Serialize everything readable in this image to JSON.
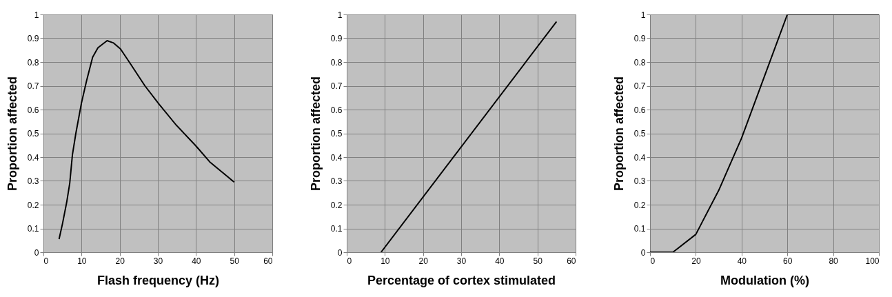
{
  "chart_data": [
    {
      "type": "line",
      "xlabel": "Flash frequency (Hz)",
      "ylabel": "Proportion affected",
      "xlim": [
        0,
        60
      ],
      "xticks": [
        0,
        10,
        20,
        30,
        40,
        50,
        60
      ],
      "ylim": [
        0,
        1
      ],
      "yticks": [
        0,
        0.1,
        0.2,
        0.3,
        0.4,
        0.5,
        0.6,
        0.7,
        0.8,
        0.9,
        1
      ],
      "grid": true,
      "series": [
        {
          "color": "#000000",
          "x": [
            4.1,
            5,
            6.1,
            6.9,
            7.6,
            8.5,
            10,
            11.3,
            12.9,
            14.3,
            16.7,
            18.4,
            20.2,
            22.5,
            26.6,
            30.2,
            34.8,
            40.1,
            43.6,
            50
          ],
          "values": [
            0.055,
            0.12,
            0.21,
            0.29,
            0.41,
            0.5,
            0.63,
            0.72,
            0.82,
            0.86,
            0.89,
            0.88,
            0.855,
            0.8,
            0.7,
            0.625,
            0.535,
            0.445,
            0.38,
            0.295
          ]
        }
      ]
    },
    {
      "type": "line",
      "xlabel": "Percentage of cortex stimulated",
      "ylabel": "Proportion affected",
      "xlim": [
        0,
        60
      ],
      "xticks": [
        0,
        10,
        20,
        30,
        40,
        50,
        60
      ],
      "ylim": [
        0,
        1
      ],
      "yticks": [
        0,
        0.1,
        0.2,
        0.3,
        0.4,
        0.5,
        0.6,
        0.7,
        0.8,
        0.9,
        1
      ],
      "grid": true,
      "series": [
        {
          "color": "#000000",
          "x": [
            9,
            55
          ],
          "values": [
            0,
            0.97
          ]
        }
      ]
    },
    {
      "type": "line",
      "xlabel": "Modulation (%)",
      "ylabel": "Proportion affected",
      "xlim": [
        0,
        100
      ],
      "xticks": [
        0,
        20,
        40,
        60,
        80,
        100
      ],
      "ylim": [
        0,
        1
      ],
      "yticks": [
        0,
        0.1,
        0.2,
        0.3,
        0.4,
        0.5,
        0.6,
        0.7,
        0.8,
        0.9,
        1
      ],
      "grid": true,
      "series": [
        {
          "color": "#000000",
          "x": [
            0,
            10,
            20,
            30,
            40,
            50,
            60,
            100
          ],
          "values": [
            0,
            0,
            0.075,
            0.26,
            0.48,
            0.74,
            1,
            1
          ]
        }
      ]
    }
  ]
}
